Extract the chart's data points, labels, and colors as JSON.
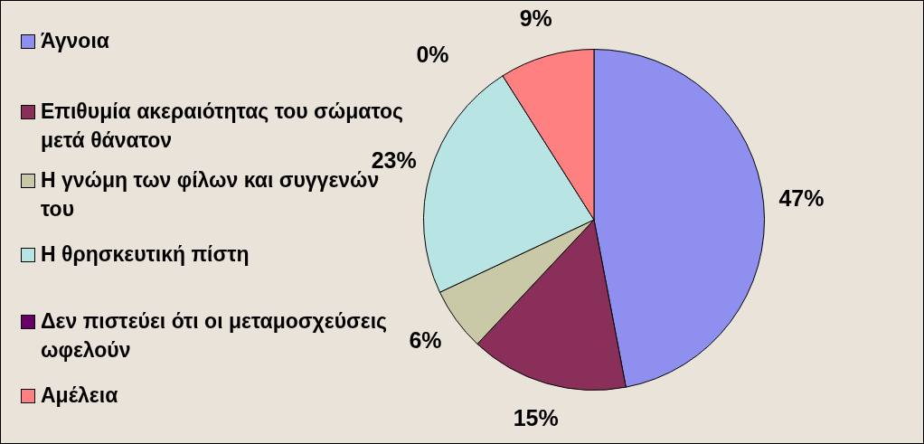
{
  "chart_data": {
    "type": "pie",
    "categories": [
      "Άγνοια",
      "Επιθυμία ακεραιότητας του σώματος μετά θάνατον",
      "Η γνώμη των φίλων και συγγενών του",
      "Η θρησκευτική πίστη",
      "Δεν πιστεύει ότι οι μεταμοσχεύσεις ωφελούν",
      "Αμέλεια"
    ],
    "values": [
      47,
      15,
      6,
      23,
      0,
      9
    ],
    "colors": [
      "#8f8fef",
      "#8a2f5a",
      "#c9c9a8",
      "#b8e4e4",
      "#660066",
      "#ff8080"
    ],
    "value_labels": [
      "47%",
      "15%",
      "6%",
      "23%",
      "0%",
      "9%"
    ],
    "legend": "left"
  }
}
